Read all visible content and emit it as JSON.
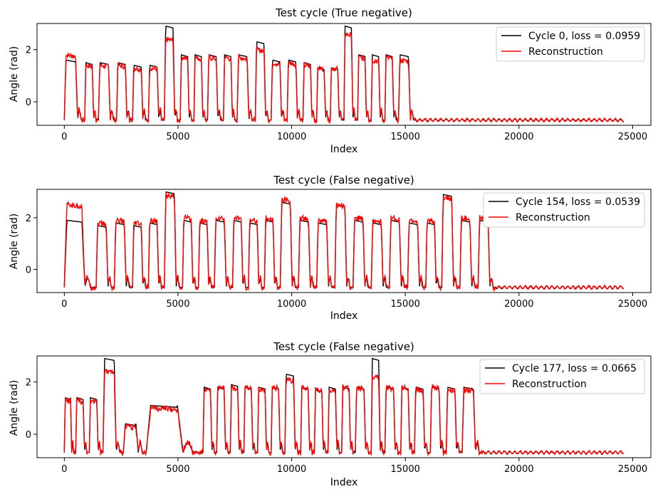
{
  "colors": {
    "original": "#000000",
    "reconstruction": "#ff0000"
  },
  "chart_data": [
    {
      "type": "line",
      "title": "Test cycle (True negative)",
      "xlabel": "Index",
      "ylabel": "Angle (rad)",
      "xlim": [
        -1200,
        25800
      ],
      "ylim": [
        -0.9,
        3.0
      ],
      "xticks": [
        0,
        5000,
        10000,
        15000,
        20000,
        25000
      ],
      "xtick_labels": [
        "0",
        "5000",
        "10000",
        "15000",
        "20000",
        "25000"
      ],
      "yticks": [
        0,
        2
      ],
      "ytick_labels": [
        "0",
        "2"
      ],
      "legend_position": "upper right",
      "end_active": 15500,
      "x_end": 24600,
      "pulse_starts": [
        0,
        900,
        1500,
        2300,
        3000,
        3700,
        4400,
        5100,
        5700,
        6300,
        7000,
        7600,
        8400,
        9100,
        9800,
        10500,
        11100,
        11700,
        12300,
        12900,
        13500,
        14100,
        14700
      ],
      "peaks": [
        1.6,
        1.5,
        1.5,
        1.5,
        1.4,
        1.4,
        2.9,
        1.8,
        1.8,
        1.8,
        1.8,
        1.8,
        2.3,
        1.6,
        1.6,
        1.5,
        1.3,
        1.3,
        2.9,
        1.8,
        1.8,
        1.8,
        1.8
      ],
      "recon_peaks": [
        1.8,
        1.4,
        1.4,
        1.4,
        1.3,
        1.3,
        2.4,
        1.7,
        1.7,
        1.7,
        1.7,
        1.7,
        2.0,
        1.5,
        1.5,
        1.4,
        1.3,
        1.3,
        2.6,
        1.7,
        1.6,
        1.7,
        1.6
      ],
      "series": [
        {
          "name": "Cycle 0, loss = 0.0959",
          "role": "original"
        },
        {
          "name": "Reconstruction",
          "role": "reconstruction"
        }
      ]
    },
    {
      "type": "line",
      "title": "Test cycle (False negative)",
      "xlabel": "Index",
      "ylabel": "Angle (rad)",
      "xlim": [
        -1200,
        25800
      ],
      "ylim": [
        -0.9,
        3.1
      ],
      "xticks": [
        0,
        5000,
        10000,
        15000,
        20000,
        25000
      ],
      "xtick_labels": [
        "0",
        "5000",
        "10000",
        "15000",
        "20000",
        "25000"
      ],
      "yticks": [
        0,
        2
      ],
      "ytick_labels": [
        "0",
        "2"
      ],
      "legend_position": "upper right",
      "end_active": 19000,
      "x_end": 24600,
      "pulse_starts": [
        0,
        1400,
        2200,
        3000,
        3700,
        4400,
        5200,
        5900,
        6600,
        7400,
        8100,
        8800,
        9500,
        10300,
        11100,
        11900,
        12700,
        13500,
        14300,
        15100,
        15900,
        16600,
        17400,
        18200
      ],
      "peaks": [
        1.9,
        1.7,
        1.8,
        1.7,
        1.8,
        3.0,
        1.9,
        1.8,
        1.9,
        1.9,
        1.8,
        1.9,
        2.6,
        1.9,
        1.8,
        2.5,
        1.9,
        1.8,
        1.9,
        1.8,
        1.8,
        2.9,
        1.9,
        1.9
      ],
      "recon_peaks": [
        2.5,
        1.8,
        1.9,
        1.8,
        1.9,
        2.9,
        2.0,
        1.9,
        2.0,
        2.0,
        1.9,
        2.0,
        2.7,
        2.0,
        1.9,
        2.5,
        2.0,
        1.9,
        2.0,
        1.9,
        1.9,
        2.8,
        2.0,
        2.0
      ],
      "series": [
        {
          "name": "Cycle 154, loss = 0.0539",
          "role": "original"
        },
        {
          "name": "Reconstruction",
          "role": "reconstruction"
        }
      ]
    },
    {
      "type": "line",
      "title": "Test cycle (False negative)",
      "xlabel": "Index",
      "ylabel": "Angle (rad)",
      "xlim": [
        -1200,
        25800
      ],
      "ylim": [
        -0.9,
        3.0
      ],
      "xticks": [
        0,
        5000,
        10000,
        15000,
        20000,
        25000
      ],
      "xtick_labels": [
        "0",
        "5000",
        "10000",
        "15000",
        "20000",
        "25000"
      ],
      "yticks": [
        0,
        2
      ],
      "ytick_labels": [
        "0",
        "2"
      ],
      "legend_position": "upper right",
      "end_active": 18400,
      "x_end": 24600,
      "pulse_starts": [
        0,
        500,
        1100,
        1700,
        2600,
        3600,
        6100,
        6700,
        7300,
        7900,
        8500,
        9100,
        9700,
        10400,
        11000,
        11600,
        12200,
        12800,
        13500,
        14100,
        14800,
        15400,
        16100,
        16800,
        17500
      ],
      "peaks": [
        1.4,
        1.4,
        1.4,
        2.9,
        0.4,
        1.1,
        1.8,
        1.8,
        1.9,
        1.8,
        1.8,
        1.8,
        2.3,
        1.8,
        1.7,
        1.8,
        1.8,
        1.8,
        2.9,
        1.8,
        1.8,
        1.8,
        1.8,
        1.8,
        1.8
      ],
      "recon_peaks": [
        1.3,
        1.3,
        1.3,
        2.4,
        0.3,
        1.0,
        1.7,
        1.8,
        1.8,
        1.8,
        1.7,
        1.8,
        2.1,
        1.8,
        1.7,
        1.7,
        1.8,
        1.8,
        2.2,
        1.8,
        1.8,
        1.7,
        1.8,
        1.7,
        1.7
      ],
      "series": [
        {
          "name": "Cycle 177, loss = 0.0665",
          "role": "original"
        },
        {
          "name": "Reconstruction",
          "role": "reconstruction"
        }
      ]
    }
  ]
}
